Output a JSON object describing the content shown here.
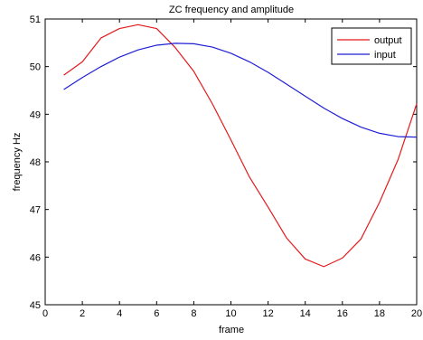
{
  "chart_data": {
    "type": "line",
    "title": "ZC  frequency and amplitude",
    "xlabel": "frame",
    "ylabel": "frequency Hz",
    "xlim": [
      0,
      20
    ],
    "ylim": [
      45,
      51
    ],
    "xticks": [
      0,
      2,
      4,
      6,
      8,
      10,
      12,
      14,
      16,
      18,
      20
    ],
    "yticks": [
      45,
      46,
      47,
      48,
      49,
      50,
      51
    ],
    "grid": false,
    "legend_position": "top-right",
    "series": [
      {
        "name": "output",
        "color": "#e41a1c",
        "x": [
          1,
          2,
          3,
          4,
          5,
          6,
          7,
          8,
          9,
          10,
          11,
          12,
          13,
          14,
          15,
          16,
          17,
          18,
          19,
          20
        ],
        "y": [
          49.82,
          50.1,
          50.6,
          50.8,
          50.88,
          50.8,
          50.4,
          49.9,
          49.22,
          48.46,
          47.68,
          47.05,
          46.4,
          45.96,
          45.8,
          45.98,
          46.38,
          47.15,
          48.05,
          49.22
        ]
      },
      {
        "name": "input",
        "color": "#1f1fd6",
        "x": [
          1,
          2,
          3,
          4,
          5,
          6,
          7,
          8,
          9,
          10,
          11,
          12,
          13,
          14,
          15,
          16,
          17,
          18,
          19,
          20
        ],
        "y": [
          49.52,
          49.77,
          50.0,
          50.2,
          50.35,
          50.45,
          50.49,
          50.48,
          50.41,
          50.28,
          50.1,
          49.88,
          49.63,
          49.38,
          49.13,
          48.91,
          48.73,
          48.6,
          48.53,
          48.52
        ]
      }
    ]
  }
}
